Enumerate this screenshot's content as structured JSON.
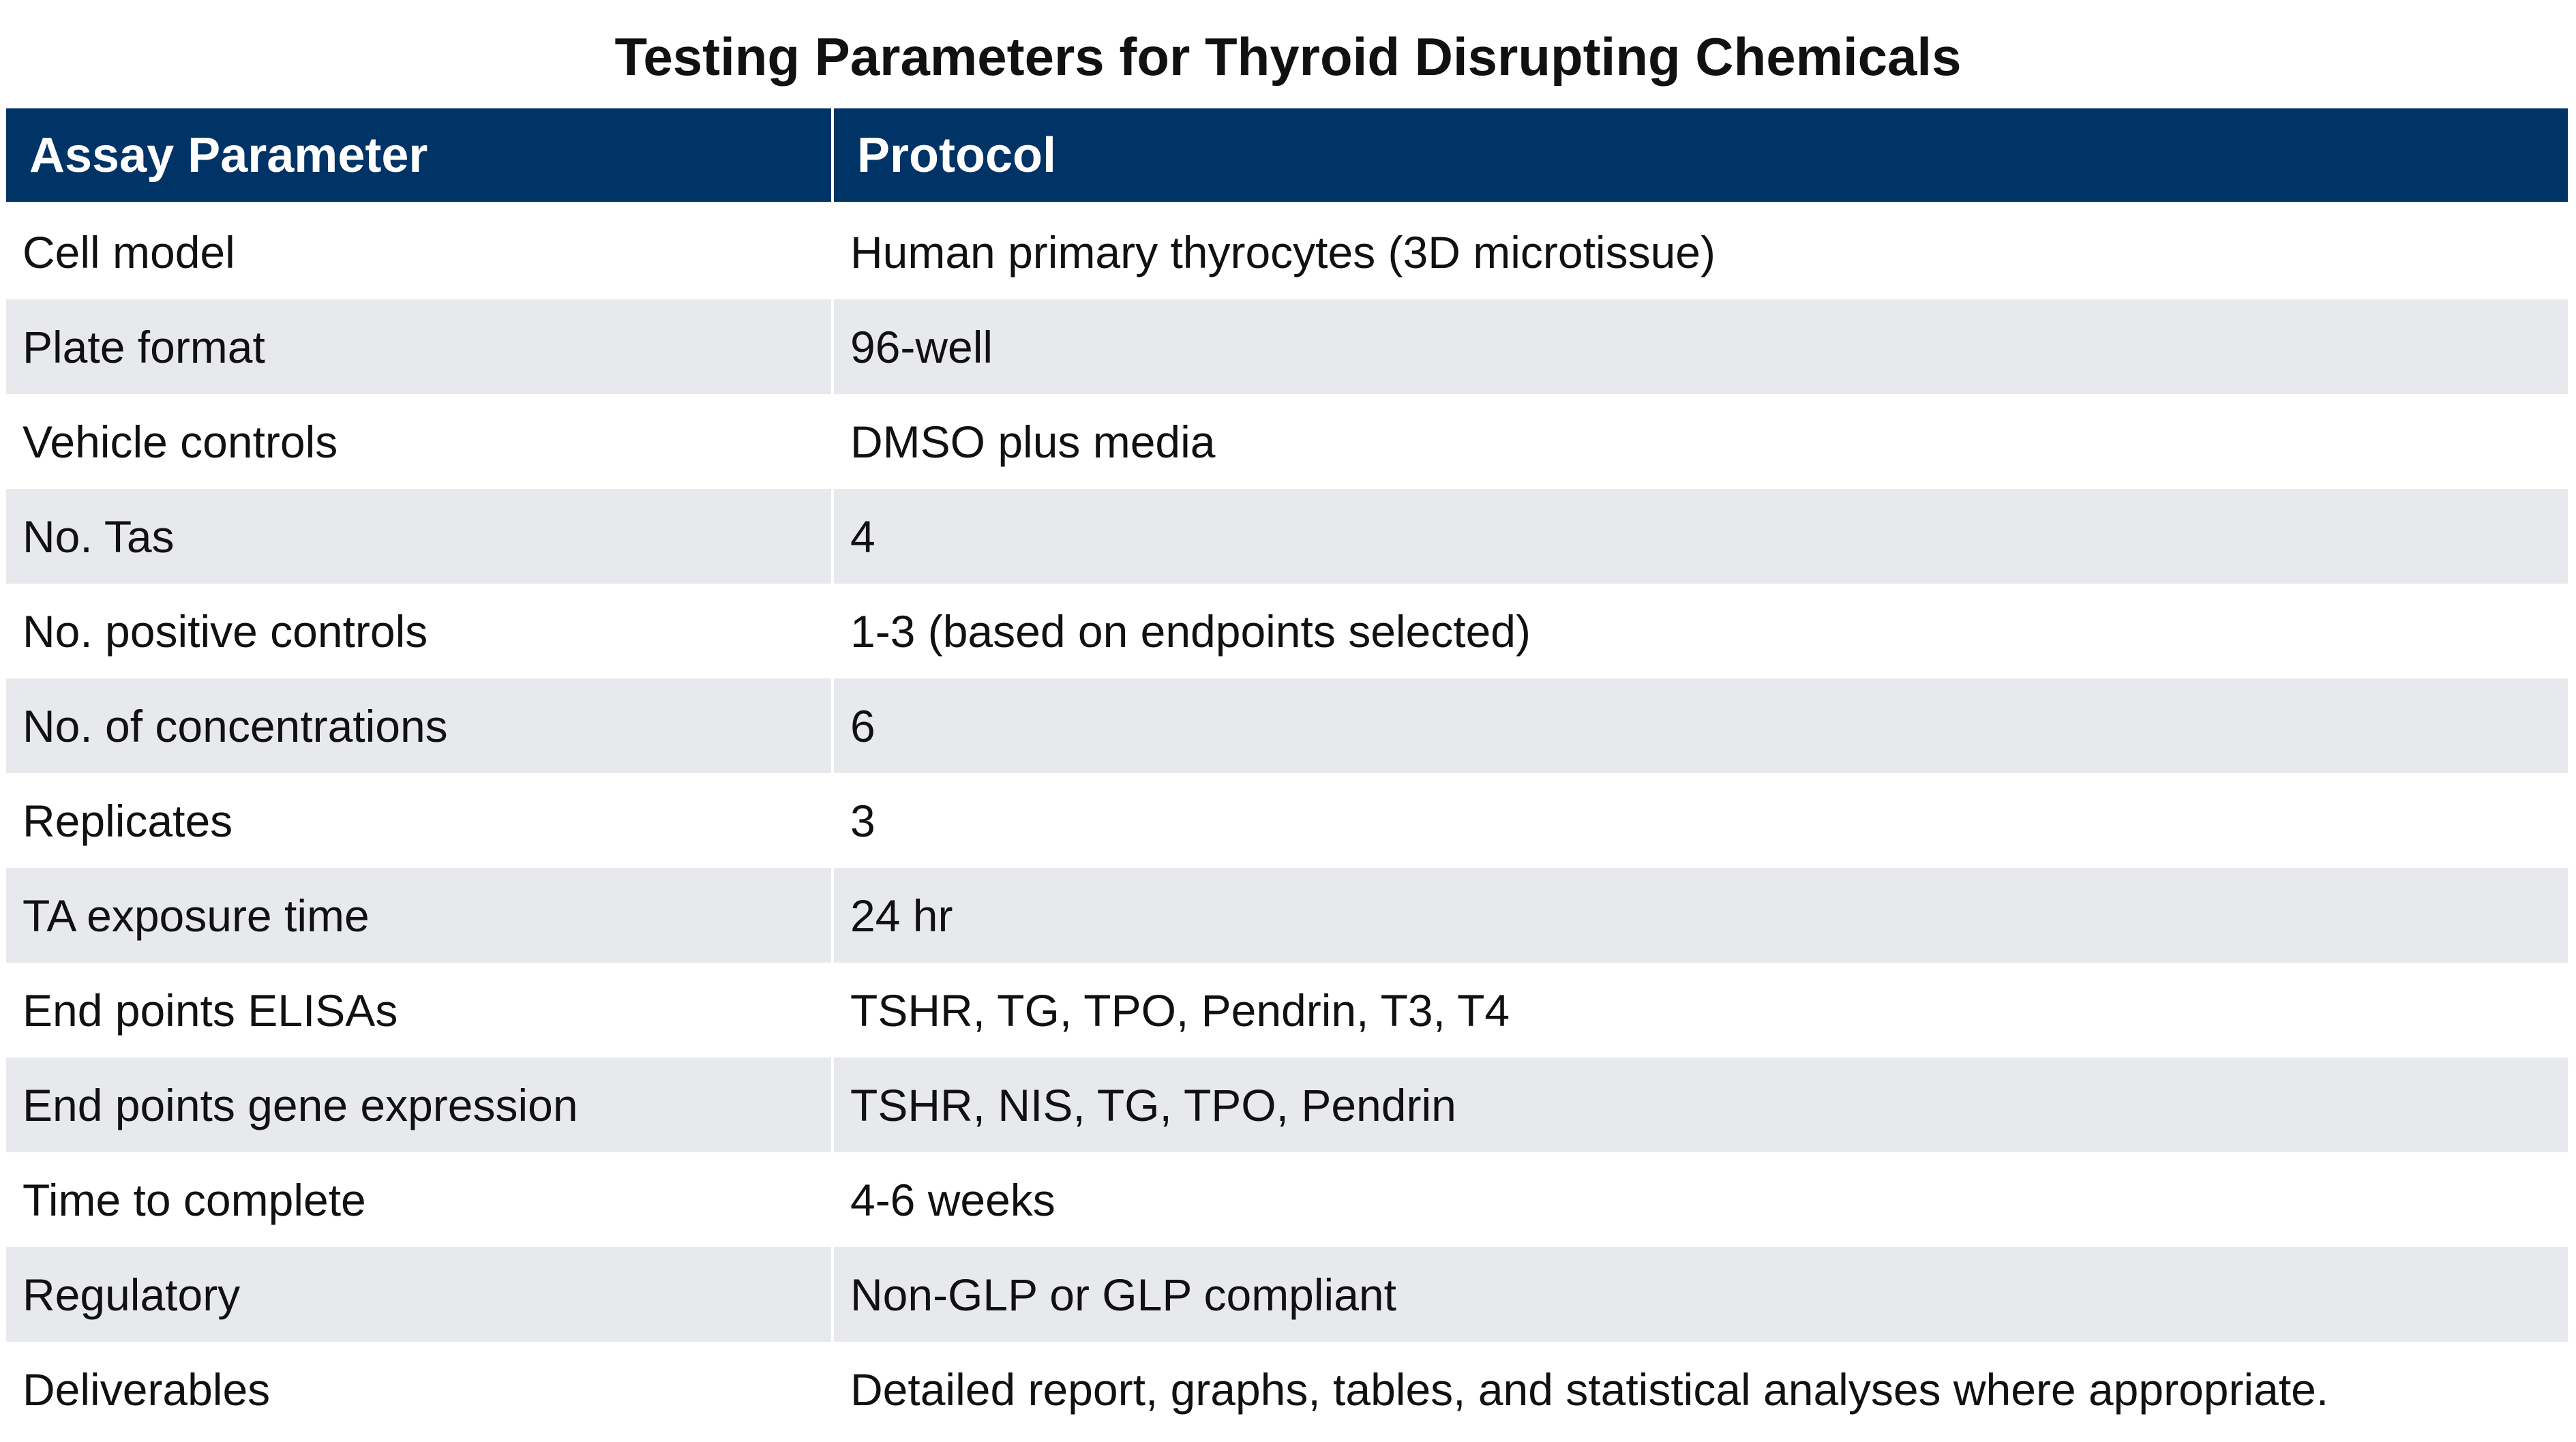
{
  "title": "Testing Parameters for Thyroid Disrupting Chemicals",
  "table": {
    "header": [
      "Assay Parameter",
      "Protocol"
    ],
    "rows": [
      [
        "Cell model",
        "Human primary thyrocytes (3D microtissue)"
      ],
      [
        "Plate format",
        "96-well"
      ],
      [
        "Vehicle controls",
        "DMSO plus media"
      ],
      [
        "No. Tas",
        "4"
      ],
      [
        "No. positive controls",
        "1-3 (based on endpoints selected)"
      ],
      [
        "No. of concentrations",
        "6"
      ],
      [
        "Replicates",
        "3"
      ],
      [
        "TA exposure time",
        "24 hr"
      ],
      [
        "End points ELISAs",
        "TSHR, TG, TPO, Pendrin, T3, T4"
      ],
      [
        "End points gene expression",
        "TSHR, NIS, TG, TPO, Pendrin"
      ],
      [
        "Time to complete",
        "4-6 weeks"
      ],
      [
        "Regulatory",
        "Non-GLP or GLP compliant"
      ],
      [
        "Deliverables",
        "Detailed report, graphs, tables, and statistical analyses where appropriate."
      ]
    ]
  }
}
